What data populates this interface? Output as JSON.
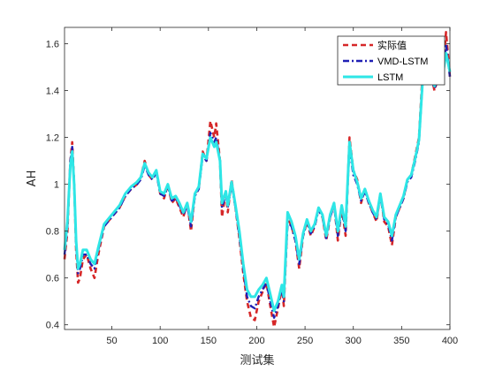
{
  "chart_data": {
    "type": "line",
    "xlabel": "测试集",
    "ylabel": "AH",
    "xlim": [
      1,
      400
    ],
    "ylim": [
      0.38,
      1.67
    ],
    "xticks": [
      50,
      100,
      150,
      200,
      250,
      300,
      350,
      400
    ],
    "yticks": [
      0.4,
      0.6,
      0.8,
      1.0,
      1.2,
      1.4,
      1.6
    ],
    "ytick_labels": [
      "0.4",
      "0.6",
      "0.8",
      "1",
      "1.2",
      "1.4",
      "1.6"
    ],
    "grid": false,
    "legend_position": "top-right",
    "series": [
      {
        "name": "实际值",
        "color": "#d62728",
        "style": "dashed",
        "points": [
          [
            1,
            0.68
          ],
          [
            4,
            0.8
          ],
          [
            7,
            1.1
          ],
          [
            9,
            1.18
          ],
          [
            11,
            1.0
          ],
          [
            13,
            0.72
          ],
          [
            15,
            0.58
          ],
          [
            17,
            0.6
          ],
          [
            20,
            0.68
          ],
          [
            24,
            0.7
          ],
          [
            28,
            0.64
          ],
          [
            32,
            0.6
          ],
          [
            36,
            0.7
          ],
          [
            42,
            0.82
          ],
          [
            50,
            0.86
          ],
          [
            58,
            0.9
          ],
          [
            64,
            0.95
          ],
          [
            70,
            0.98
          ],
          [
            76,
            1.0
          ],
          [
            80,
            1.03
          ],
          [
            84,
            1.1
          ],
          [
            88,
            1.04
          ],
          [
            92,
            1.02
          ],
          [
            96,
            1.06
          ],
          [
            100,
            0.96
          ],
          [
            104,
            0.94
          ],
          [
            108,
            1.0
          ],
          [
            112,
            0.92
          ],
          [
            116,
            0.94
          ],
          [
            120,
            0.9
          ],
          [
            124,
            0.86
          ],
          [
            128,
            0.92
          ],
          [
            132,
            0.8
          ],
          [
            136,
            0.96
          ],
          [
            140,
            0.98
          ],
          [
            144,
            1.14
          ],
          [
            148,
            1.1
          ],
          [
            152,
            1.27
          ],
          [
            156,
            1.2
          ],
          [
            158,
            1.26
          ],
          [
            162,
            1.1
          ],
          [
            164,
            0.86
          ],
          [
            168,
            0.97
          ],
          [
            170,
            0.88
          ],
          [
            174,
            1.02
          ],
          [
            178,
            0.9
          ],
          [
            182,
            0.77
          ],
          [
            186,
            0.62
          ],
          [
            190,
            0.5
          ],
          [
            194,
            0.43
          ],
          [
            198,
            0.42
          ],
          [
            202,
            0.5
          ],
          [
            206,
            0.54
          ],
          [
            210,
            0.58
          ],
          [
            214,
            0.48
          ],
          [
            218,
            0.39
          ],
          [
            222,
            0.47
          ],
          [
            226,
            0.56
          ],
          [
            228,
            0.48
          ],
          [
            232,
            0.86
          ],
          [
            236,
            0.82
          ],
          [
            240,
            0.76
          ],
          [
            244,
            0.64
          ],
          [
            248,
            0.78
          ],
          [
            252,
            0.84
          ],
          [
            256,
            0.78
          ],
          [
            260,
            0.82
          ],
          [
            264,
            0.9
          ],
          [
            268,
            0.86
          ],
          [
            272,
            0.76
          ],
          [
            276,
            0.86
          ],
          [
            280,
            0.92
          ],
          [
            284,
            0.76
          ],
          [
            288,
            0.9
          ],
          [
            292,
            0.78
          ],
          [
            296,
            1.2
          ],
          [
            300,
            1.06
          ],
          [
            304,
            1.02
          ],
          [
            308,
            0.92
          ],
          [
            312,
            0.98
          ],
          [
            316,
            0.92
          ],
          [
            320,
            0.88
          ],
          [
            324,
            0.84
          ],
          [
            328,
            0.96
          ],
          [
            332,
            0.84
          ],
          [
            336,
            0.82
          ],
          [
            340,
            0.74
          ],
          [
            344,
            0.86
          ],
          [
            348,
            0.9
          ],
          [
            352,
            0.94
          ],
          [
            356,
            1.02
          ],
          [
            360,
            1.04
          ],
          [
            364,
            1.12
          ],
          [
            368,
            1.2
          ],
          [
            372,
            1.5
          ],
          [
            376,
            1.44
          ],
          [
            380,
            1.48
          ],
          [
            384,
            1.4
          ],
          [
            388,
            1.46
          ],
          [
            392,
            1.44
          ],
          [
            396,
            1.65
          ],
          [
            400,
            1.46
          ]
        ]
      },
      {
        "name": "VMD-LSTM",
        "color": "#1f1fb4",
        "style": "dashdot",
        "points": [
          [
            1,
            0.7
          ],
          [
            4,
            0.82
          ],
          [
            7,
            1.1
          ],
          [
            9,
            1.16
          ],
          [
            11,
            1.0
          ],
          [
            13,
            0.74
          ],
          [
            15,
            0.62
          ],
          [
            17,
            0.64
          ],
          [
            20,
            0.7
          ],
          [
            24,
            0.7
          ],
          [
            28,
            0.66
          ],
          [
            32,
            0.64
          ],
          [
            36,
            0.72
          ],
          [
            42,
            0.82
          ],
          [
            50,
            0.86
          ],
          [
            58,
            0.9
          ],
          [
            64,
            0.95
          ],
          [
            70,
            0.98
          ],
          [
            76,
            1.0
          ],
          [
            80,
            1.02
          ],
          [
            84,
            1.08
          ],
          [
            88,
            1.04
          ],
          [
            92,
            1.02
          ],
          [
            96,
            1.05
          ],
          [
            100,
            0.96
          ],
          [
            104,
            0.95
          ],
          [
            108,
            0.99
          ],
          [
            112,
            0.93
          ],
          [
            116,
            0.94
          ],
          [
            120,
            0.91
          ],
          [
            124,
            0.87
          ],
          [
            128,
            0.91
          ],
          [
            132,
            0.82
          ],
          [
            136,
            0.95
          ],
          [
            140,
            0.98
          ],
          [
            144,
            1.12
          ],
          [
            148,
            1.1
          ],
          [
            152,
            1.22
          ],
          [
            156,
            1.18
          ],
          [
            158,
            1.2
          ],
          [
            162,
            1.1
          ],
          [
            164,
            0.9
          ],
          [
            168,
            0.96
          ],
          [
            170,
            0.9
          ],
          [
            174,
            1.0
          ],
          [
            178,
            0.9
          ],
          [
            182,
            0.78
          ],
          [
            186,
            0.64
          ],
          [
            190,
            0.52
          ],
          [
            194,
            0.48
          ],
          [
            198,
            0.47
          ],
          [
            202,
            0.52
          ],
          [
            206,
            0.55
          ],
          [
            210,
            0.58
          ],
          [
            214,
            0.5
          ],
          [
            218,
            0.43
          ],
          [
            222,
            0.48
          ],
          [
            226,
            0.56
          ],
          [
            228,
            0.5
          ],
          [
            232,
            0.84
          ],
          [
            236,
            0.82
          ],
          [
            240,
            0.76
          ],
          [
            244,
            0.66
          ],
          [
            248,
            0.78
          ],
          [
            252,
            0.84
          ],
          [
            256,
            0.79
          ],
          [
            260,
            0.82
          ],
          [
            264,
            0.89
          ],
          [
            268,
            0.86
          ],
          [
            272,
            0.77
          ],
          [
            276,
            0.86
          ],
          [
            280,
            0.91
          ],
          [
            284,
            0.78
          ],
          [
            288,
            0.9
          ],
          [
            292,
            0.8
          ],
          [
            296,
            1.16
          ],
          [
            300,
            1.04
          ],
          [
            304,
            1.0
          ],
          [
            308,
            0.93
          ],
          [
            312,
            0.97
          ],
          [
            316,
            0.92
          ],
          [
            320,
            0.88
          ],
          [
            324,
            0.85
          ],
          [
            328,
            0.95
          ],
          [
            332,
            0.85
          ],
          [
            336,
            0.83
          ],
          [
            340,
            0.76
          ],
          [
            344,
            0.86
          ],
          [
            348,
            0.9
          ],
          [
            352,
            0.94
          ],
          [
            356,
            1.01
          ],
          [
            360,
            1.03
          ],
          [
            364,
            1.1
          ],
          [
            368,
            1.18
          ],
          [
            372,
            1.46
          ],
          [
            376,
            1.43
          ],
          [
            380,
            1.46
          ],
          [
            384,
            1.41
          ],
          [
            388,
            1.45
          ],
          [
            392,
            1.44
          ],
          [
            396,
            1.6
          ],
          [
            400,
            1.46
          ]
        ]
      },
      {
        "name": "LSTM",
        "color": "#2ee6e6",
        "style": "solid",
        "points": [
          [
            1,
            0.72
          ],
          [
            4,
            0.84
          ],
          [
            7,
            1.08
          ],
          [
            9,
            1.14
          ],
          [
            11,
            1.0
          ],
          [
            13,
            0.76
          ],
          [
            15,
            0.64
          ],
          [
            17,
            0.66
          ],
          [
            20,
            0.72
          ],
          [
            24,
            0.72
          ],
          [
            28,
            0.68
          ],
          [
            32,
            0.66
          ],
          [
            36,
            0.73
          ],
          [
            42,
            0.83
          ],
          [
            50,
            0.87
          ],
          [
            58,
            0.91
          ],
          [
            64,
            0.96
          ],
          [
            70,
            0.99
          ],
          [
            76,
            1.01
          ],
          [
            80,
            1.03
          ],
          [
            84,
            1.09
          ],
          [
            88,
            1.05
          ],
          [
            92,
            1.03
          ],
          [
            96,
            1.06
          ],
          [
            100,
            0.97
          ],
          [
            104,
            0.96
          ],
          [
            108,
            1.0
          ],
          [
            112,
            0.94
          ],
          [
            116,
            0.95
          ],
          [
            120,
            0.92
          ],
          [
            124,
            0.88
          ],
          [
            128,
            0.92
          ],
          [
            132,
            0.84
          ],
          [
            136,
            0.96
          ],
          [
            140,
            0.99
          ],
          [
            144,
            1.13
          ],
          [
            148,
            1.11
          ],
          [
            152,
            1.2
          ],
          [
            156,
            1.16
          ],
          [
            158,
            1.18
          ],
          [
            162,
            1.1
          ],
          [
            164,
            0.92
          ],
          [
            168,
            0.97
          ],
          [
            170,
            0.91
          ],
          [
            174,
            1.01
          ],
          [
            178,
            0.91
          ],
          [
            182,
            0.8
          ],
          [
            186,
            0.66
          ],
          [
            190,
            0.55
          ],
          [
            194,
            0.52
          ],
          [
            198,
            0.52
          ],
          [
            202,
            0.55
          ],
          [
            206,
            0.57
          ],
          [
            210,
            0.6
          ],
          [
            214,
            0.53
          ],
          [
            218,
            0.46
          ],
          [
            222,
            0.5
          ],
          [
            226,
            0.57
          ],
          [
            228,
            0.52
          ],
          [
            232,
            0.88
          ],
          [
            236,
            0.84
          ],
          [
            240,
            0.78
          ],
          [
            244,
            0.68
          ],
          [
            248,
            0.79
          ],
          [
            252,
            0.85
          ],
          [
            256,
            0.8
          ],
          [
            260,
            0.83
          ],
          [
            264,
            0.9
          ],
          [
            268,
            0.87
          ],
          [
            272,
            0.78
          ],
          [
            276,
            0.87
          ],
          [
            280,
            0.92
          ],
          [
            284,
            0.8
          ],
          [
            288,
            0.91
          ],
          [
            292,
            0.82
          ],
          [
            296,
            1.18
          ],
          [
            300,
            1.06
          ],
          [
            304,
            1.01
          ],
          [
            308,
            0.94
          ],
          [
            312,
            0.98
          ],
          [
            316,
            0.93
          ],
          [
            320,
            0.89
          ],
          [
            324,
            0.86
          ],
          [
            328,
            0.96
          ],
          [
            332,
            0.86
          ],
          [
            336,
            0.84
          ],
          [
            340,
            0.78
          ],
          [
            344,
            0.87
          ],
          [
            348,
            0.91
          ],
          [
            352,
            0.95
          ],
          [
            356,
            1.02
          ],
          [
            360,
            1.04
          ],
          [
            364,
            1.11
          ],
          [
            368,
            1.19
          ],
          [
            372,
            1.46
          ],
          [
            376,
            1.44
          ],
          [
            380,
            1.47
          ],
          [
            384,
            1.42
          ],
          [
            388,
            1.46
          ],
          [
            392,
            1.45
          ],
          [
            396,
            1.56
          ],
          [
            400,
            1.48
          ]
        ]
      }
    ]
  }
}
